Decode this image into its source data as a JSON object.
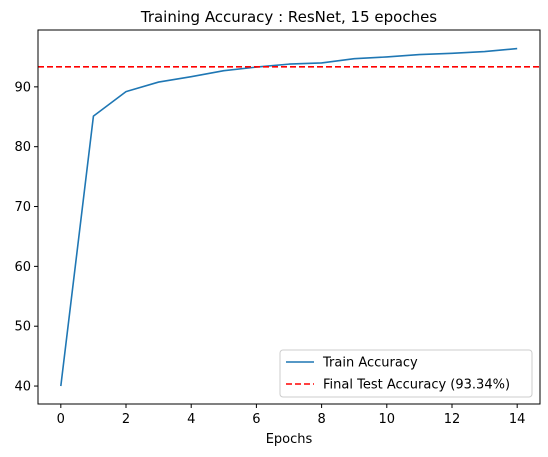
{
  "chart_data": {
    "type": "line",
    "title": "Training Accuracy : ResNet, 15 epoches",
    "xlabel": "Epochs",
    "ylabel": "",
    "xlim": [
      -0.7,
      14.7
    ],
    "ylim": [
      37,
      99.5
    ],
    "xticks": [
      0,
      2,
      4,
      6,
      8,
      10,
      12,
      14
    ],
    "yticks": [
      40,
      50,
      60,
      70,
      80,
      90
    ],
    "grid": false,
    "legend_position": "lower-right",
    "series": [
      {
        "name": "Train Accuracy",
        "color": "#1f77b4",
        "style": "solid",
        "x": [
          0,
          1,
          2,
          3,
          4,
          5,
          6,
          7,
          8,
          9,
          10,
          11,
          12,
          13,
          14
        ],
        "y": [
          40.0,
          85.1,
          89.2,
          90.8,
          91.7,
          92.7,
          93.3,
          93.8,
          94.0,
          94.7,
          95.0,
          95.4,
          95.6,
          95.9,
          96.4
        ]
      },
      {
        "name": "Final Test Accuracy (93.34%)",
        "color": "#ff0000",
        "style": "dashed",
        "hline": 93.34
      }
    ]
  }
}
